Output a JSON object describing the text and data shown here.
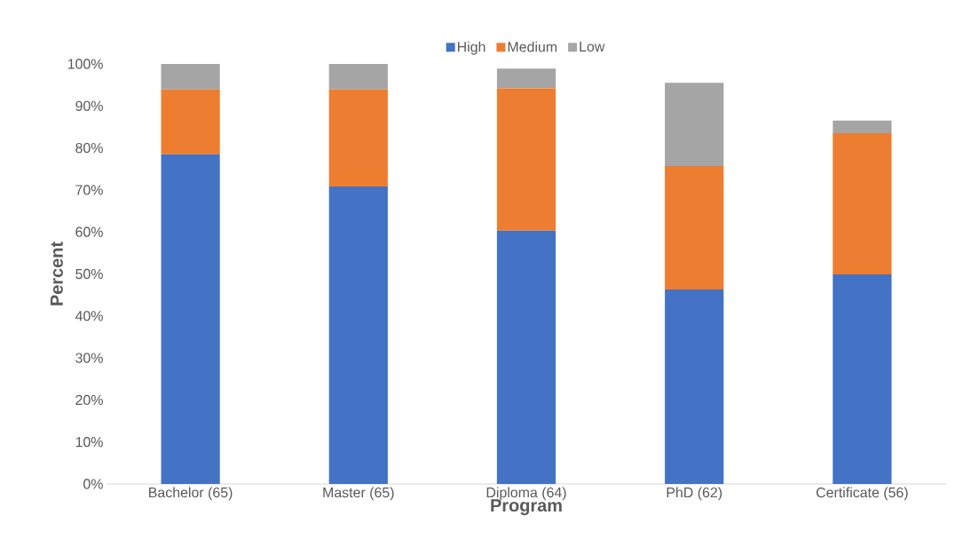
{
  "chart_data": {
    "type": "bar",
    "stacked": true,
    "xlabel": "Program",
    "ylabel": "Percent",
    "categories": [
      "Bachelor (65)",
      "Master (65)",
      "Diploma (64)",
      "PhD (62)",
      "Certificate (56)"
    ],
    "series": [
      {
        "name": "High",
        "color": "#4472c4",
        "values": [
          78.5,
          70.8,
          60.3,
          46.3,
          49.9
        ]
      },
      {
        "name": "Medium",
        "color": "#ed7d31",
        "values": [
          15.4,
          23.1,
          33.9,
          29.4,
          33.6
        ]
      },
      {
        "name": "Low",
        "color": "#a5a5a5",
        "values": [
          6.1,
          6.1,
          4.7,
          19.8,
          3.0
        ]
      }
    ],
    "ylim": [
      0,
      100
    ],
    "yticks": [
      {
        "value": 0,
        "label": "0%"
      },
      {
        "value": 10,
        "label": "10%"
      },
      {
        "value": 20,
        "label": "20%"
      },
      {
        "value": 30,
        "label": "30%"
      },
      {
        "value": 40,
        "label": "40%"
      },
      {
        "value": 50,
        "label": "50%"
      },
      {
        "value": 60,
        "label": "60%"
      },
      {
        "value": 70,
        "label": "70%"
      },
      {
        "value": 80,
        "label": "80%"
      },
      {
        "value": 90,
        "label": "90%"
      },
      {
        "value": 100,
        "label": "100%"
      }
    ],
    "grid": false,
    "legend": "top"
  }
}
